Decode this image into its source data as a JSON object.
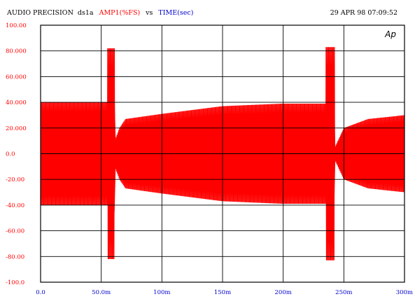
{
  "header": {
    "instrument": "AUDIO PRECISION",
    "file": "ds1a",
    "y_series_label": "AMP1(%FS)",
    "vs_label": "vs",
    "x_series_label": "TIME(sec)",
    "timestamp": "29 APR 98 07:09:52"
  },
  "brand": "Ap",
  "colors": {
    "background": "#ffffff",
    "grid": "#000000",
    "trace": "#ff0000",
    "x_label_color": "#0000cc",
    "y_tick_color": "#ff0000",
    "x_tick_color": "#0000cc",
    "header_text": "#000000"
  },
  "chart_data": {
    "type": "line",
    "title": "",
    "xlabel": "TIME(sec)",
    "ylabel": "AMP1(%FS)",
    "xlim": [
      0,
      0.3
    ],
    "ylim": [
      -100,
      100
    ],
    "grid": true,
    "x_ticks": [
      0,
      0.05,
      0.1,
      0.15,
      0.2,
      0.25,
      0.3
    ],
    "x_tick_labels": [
      "0.0",
      "50.0m",
      "100m",
      "150m",
      "200m",
      "250m",
      "300m"
    ],
    "y_ticks": [
      100,
      80,
      60,
      40,
      20,
      0,
      -20,
      -40,
      -60,
      -80,
      -100
    ],
    "y_tick_labels": [
      "100.00",
      "80.000",
      "60.000",
      "40.000",
      "20.000",
      "0.0",
      "-20.00",
      "-40.00",
      "-60.00",
      "-80.00",
      "-100.0"
    ],
    "envelope": {
      "x": [
        0,
        0.055,
        0.0551,
        0.061,
        0.0611,
        0.065,
        0.07,
        0.1,
        0.15,
        0.2,
        0.235,
        0.2351,
        0.2425,
        0.2426,
        0.25,
        0.27,
        0.3
      ],
      "upper": [
        40,
        40,
        82,
        82,
        10,
        20,
        27,
        31,
        37,
        39,
        39,
        83,
        83,
        5,
        20,
        27,
        30
      ],
      "lower": [
        -40,
        -40,
        -82,
        -82,
        -10,
        -20,
        -27,
        -31,
        -37,
        -39,
        -39,
        -83,
        -83,
        -5,
        -20,
        -27,
        -30
      ]
    },
    "series": [
      {
        "name": "",
        "color": "#ff0000",
        "cycles": 430
      }
    ]
  }
}
